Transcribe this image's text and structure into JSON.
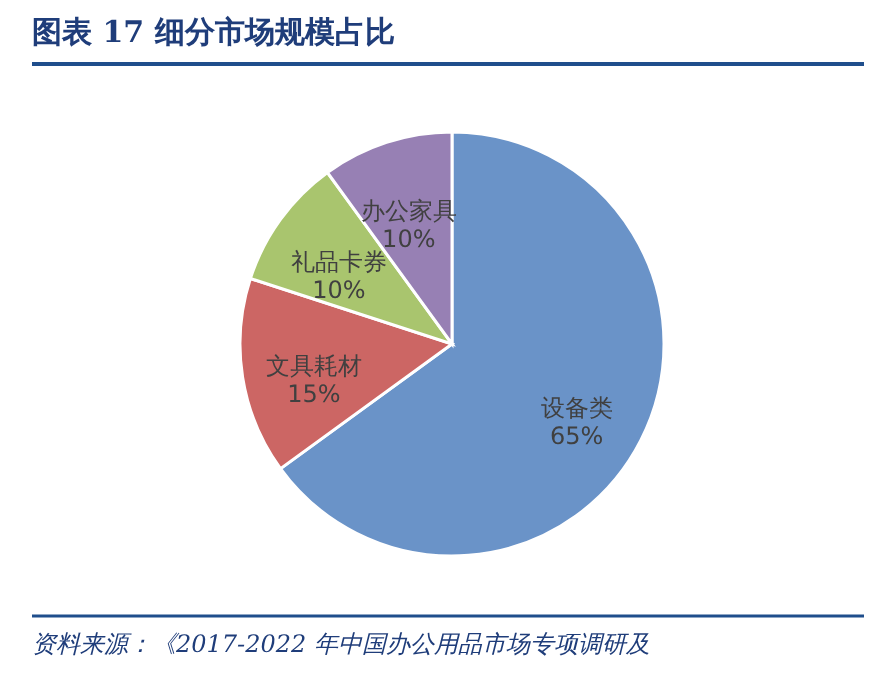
{
  "chart_data": {
    "type": "pie",
    "title": "图表 17    细分市场规模占比",
    "categories": [
      "设备类",
      "文具耗材",
      "礼品卡券",
      "办公家具"
    ],
    "values": [
      65,
      15,
      10,
      10
    ],
    "colors": [
      "#6a93c8",
      "#cc6664",
      "#a9c56e",
      "#9780b4"
    ],
    "value_labels": [
      "65%",
      "15%",
      "10%",
      "10%"
    ],
    "annotations": [
      "资料来源：《2017-2022 年中国办公用品市场专项调研及"
    ]
  }
}
